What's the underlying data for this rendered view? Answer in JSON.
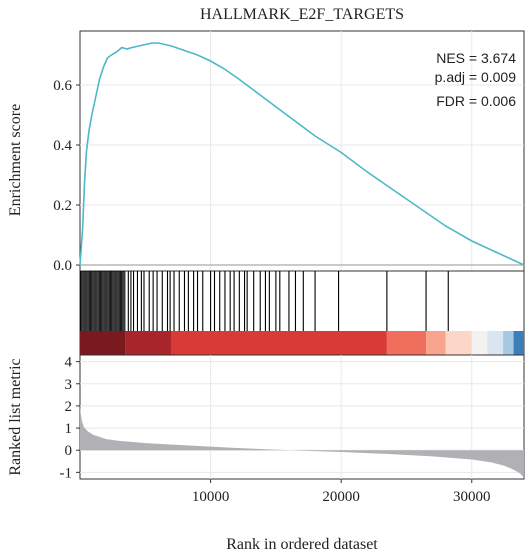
{
  "chart_data": {
    "type": "line",
    "title": "HALLMARK_E2F_TARGETS",
    "xlabel": "Rank in ordered dataset",
    "xlim": [
      0,
      34000
    ],
    "x_ticks": [
      10000,
      20000,
      30000
    ],
    "panels": {
      "enrichment": {
        "ylabel": "Enrichment score",
        "ylim": [
          -0.02,
          0.78
        ],
        "y_ticks": [
          0.0,
          0.2,
          0.4,
          0.6
        ],
        "line_color": "#4db8c8",
        "curve": {
          "x": [
            0,
            200,
            350,
            500,
            700,
            900,
            1200,
            1500,
            1800,
            2100,
            2400,
            2800,
            3200,
            3600,
            4000,
            4500,
            5000,
            5500,
            6000,
            7000,
            8000,
            9000,
            10000,
            11000,
            12000,
            14000,
            16000,
            18000,
            20000,
            22000,
            24000,
            26000,
            28000,
            30000,
            32000,
            34000
          ],
          "y": [
            0.0,
            0.12,
            0.28,
            0.38,
            0.45,
            0.5,
            0.56,
            0.62,
            0.66,
            0.69,
            0.7,
            0.71,
            0.725,
            0.72,
            0.725,
            0.73,
            0.735,
            0.74,
            0.74,
            0.73,
            0.715,
            0.7,
            0.68,
            0.655,
            0.625,
            0.56,
            0.495,
            0.43,
            0.375,
            0.31,
            0.25,
            0.19,
            0.13,
            0.08,
            0.04,
            0.0
          ]
        },
        "stats": [
          {
            "label": "NES = 3.674"
          },
          {
            "label": "p.adj = 0.009"
          },
          {
            "label": "FDR = 0.006"
          }
        ]
      },
      "hits": {
        "dense_region": [
          0,
          3500
        ],
        "positions": [
          3700,
          3900,
          4100,
          4400,
          4700,
          4900,
          5300,
          5600,
          5900,
          6300,
          6700,
          6900,
          7200,
          7600,
          8000,
          8300,
          8700,
          9000,
          9400,
          10000,
          10300,
          10700,
          11100,
          11500,
          11800,
          12200,
          12600,
          12800,
          13300,
          13800,
          14200,
          14500,
          15000,
          15300,
          16000,
          16500,
          17100,
          18000,
          19800,
          23500,
          26500,
          28200
        ]
      },
      "color_bar": {
        "segments": [
          {
            "from": 0,
            "to": 3500,
            "color": "#7a1a1f"
          },
          {
            "from": 3500,
            "to": 7000,
            "color": "#a8262b"
          },
          {
            "from": 7000,
            "to": 23500,
            "color": "#d93a35"
          },
          {
            "from": 23500,
            "to": 26500,
            "color": "#f06e5c"
          },
          {
            "from": 26500,
            "to": 28000,
            "color": "#f9a48d"
          },
          {
            "from": 28000,
            "to": 30000,
            "color": "#fcd6c7"
          },
          {
            "from": 30000,
            "to": 31200,
            "color": "#f4f1f1"
          },
          {
            "from": 31200,
            "to": 32400,
            "color": "#d9e6f2"
          },
          {
            "from": 32400,
            "to": 33200,
            "color": "#a6c8e3"
          },
          {
            "from": 33200,
            "to": 34000,
            "color": "#3c7fb8"
          }
        ]
      },
      "ranked": {
        "ylabel": "Ranked list metric",
        "ylim": [
          -1.3,
          4.3
        ],
        "y_ticks": [
          -1,
          0,
          1,
          2,
          3,
          4
        ],
        "fill_color": "#b0b0b5",
        "curve": {
          "x": [
            0,
            50,
            150,
            300,
            600,
            1000,
            2000,
            3000,
            5000,
            8000,
            12000,
            16000,
            20000,
            24000,
            27000,
            30000,
            31500,
            32500,
            33200,
            33700,
            34000
          ],
          "y": [
            2.0,
            1.7,
            1.3,
            1.05,
            0.85,
            0.7,
            0.5,
            0.42,
            0.32,
            0.22,
            0.1,
            0.0,
            -0.08,
            -0.18,
            -0.28,
            -0.42,
            -0.55,
            -0.7,
            -0.88,
            -1.05,
            -1.25
          ]
        }
      }
    }
  }
}
